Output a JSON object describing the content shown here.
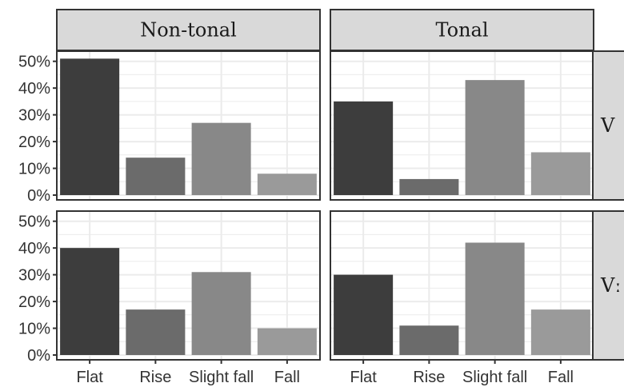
{
  "chart_data": {
    "type": "bar",
    "facet_columns": [
      "Non-tonal",
      "Tonal"
    ],
    "facet_rows": [
      "V",
      "Vː"
    ],
    "categories": [
      "Flat",
      "Rise",
      "Slight fall",
      "Fall"
    ],
    "ylim": [
      0,
      0.52
    ],
    "y_ticks": [
      0,
      0.1,
      0.2,
      0.3,
      0.4,
      0.5
    ],
    "y_tick_labels": [
      "0%",
      "10%",
      "20%",
      "30%",
      "40%",
      "50%"
    ],
    "bar_colors": [
      "#3d3d3d",
      "#6b6b6b",
      "#888888",
      "#9a9a9a"
    ],
    "grid": true,
    "panel_background": "#ffffff",
    "grid_color": "#ebebeb",
    "strip_fill": "#d9d9d9",
    "panels": [
      {
        "column": "Non-tonal",
        "row": "V",
        "values": [
          0.51,
          0.14,
          0.27,
          0.08
        ]
      },
      {
        "column": "Tonal",
        "row": "V",
        "values": [
          0.35,
          0.06,
          0.43,
          0.16
        ]
      },
      {
        "column": "Non-tonal",
        "row": "Vː",
        "values": [
          0.4,
          0.17,
          0.31,
          0.1
        ]
      },
      {
        "column": "Tonal",
        "row": "Vː",
        "values": [
          0.3,
          0.11,
          0.42,
          0.17
        ]
      }
    ]
  }
}
